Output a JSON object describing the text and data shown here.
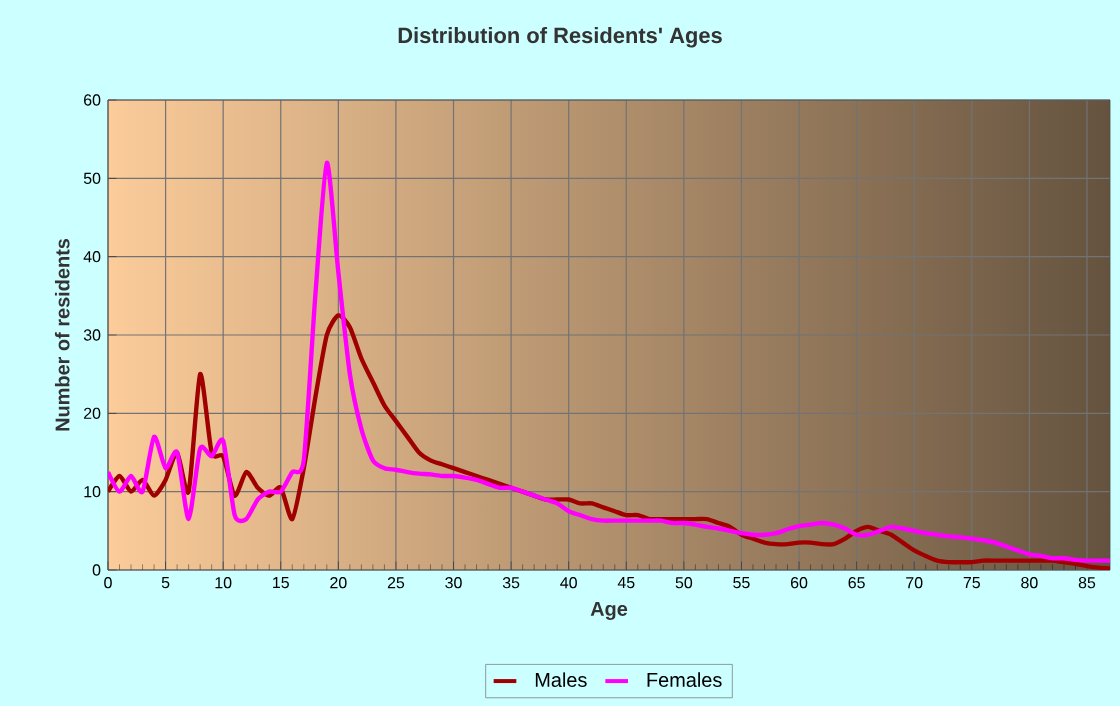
{
  "chart_data": {
    "type": "line",
    "title": "Distribution of Residents' Ages",
    "xlabel": "Age",
    "ylabel": "Number of residents",
    "x": [
      0,
      1,
      2,
      3,
      4,
      5,
      6,
      7,
      8,
      9,
      10,
      11,
      12,
      13,
      14,
      15,
      16,
      17,
      18,
      19,
      20,
      21,
      22,
      23,
      24,
      25,
      26,
      27,
      28,
      29,
      30,
      31,
      32,
      33,
      34,
      35,
      36,
      37,
      38,
      39,
      40,
      41,
      42,
      43,
      44,
      45,
      46,
      47,
      48,
      49,
      50,
      51,
      52,
      53,
      54,
      55,
      56,
      57,
      58,
      59,
      60,
      61,
      62,
      63,
      64,
      65,
      66,
      67,
      68,
      69,
      70,
      71,
      72,
      73,
      74,
      75,
      76,
      77,
      78,
      79,
      80,
      81,
      82,
      83,
      84,
      85,
      86,
      87
    ],
    "series": [
      {
        "name": "Males",
        "color": "#a00000",
        "values": [
          10,
          12,
          10,
          11.5,
          9.5,
          11.5,
          15,
          10,
          25,
          15,
          14.5,
          9.5,
          12.5,
          10.5,
          9.5,
          10.5,
          6.5,
          13,
          22,
          30,
          32.5,
          31,
          27,
          24,
          21,
          19,
          17,
          15,
          14,
          13.5,
          13,
          12.5,
          12,
          11.5,
          11,
          10.5,
          10,
          9.5,
          9,
          9,
          9,
          8.5,
          8.5,
          8,
          7.5,
          7,
          7,
          6.5,
          6.5,
          6.5,
          6.5,
          6.5,
          6.5,
          6,
          5.5,
          4.5,
          4,
          3.5,
          3.3,
          3.3,
          3.5,
          3.5,
          3.3,
          3.3,
          4,
          5,
          5.5,
          5,
          4.5,
          3.5,
          2.5,
          1.8,
          1.2,
          1,
          1,
          1,
          1.2,
          1.2,
          1.2,
          1.2,
          1.2,
          1.2,
          1.2,
          1,
          0.8,
          0.5,
          0.3,
          0.2
        ]
      },
      {
        "name": "Females",
        "color": "#ff00ff",
        "values": [
          12.5,
          10,
          12,
          10,
          17,
          13,
          15,
          6.5,
          15.5,
          14.5,
          16.5,
          7,
          6.5,
          9,
          10,
          10,
          12.5,
          14,
          35,
          52,
          38,
          25,
          18,
          14,
          13,
          12.8,
          12.5,
          12.3,
          12.2,
          12,
          12,
          11.8,
          11.5,
          11,
          10.5,
          10.5,
          10,
          9.5,
          9,
          8.5,
          7.5,
          7,
          6.5,
          6.3,
          6.3,
          6.3,
          6.3,
          6.3,
          6.3,
          6,
          6,
          5.8,
          5.5,
          5.3,
          5,
          4.7,
          4.5,
          4.5,
          4.7,
          5.2,
          5.6,
          5.8,
          6,
          5.8,
          5.3,
          4.5,
          4.5,
          5,
          5.5,
          5.3,
          5,
          4.7,
          4.5,
          4.3,
          4.2,
          4,
          3.8,
          3.5,
          3,
          2.5,
          2,
          1.8,
          1.5,
          1.5,
          1.3,
          1.2,
          1.2,
          1.2
        ]
      }
    ],
    "xlim": [
      0,
      87
    ],
    "ylim": [
      0,
      60
    ],
    "xticks": [
      0,
      5,
      10,
      15,
      20,
      25,
      30,
      35,
      40,
      45,
      50,
      55,
      60,
      65,
      70,
      75,
      80,
      85
    ],
    "yticks": [
      0,
      10,
      20,
      30,
      40,
      50,
      60
    ],
    "grid": true,
    "legend": "bottom",
    "line_style": "solid",
    "marker": "none"
  }
}
